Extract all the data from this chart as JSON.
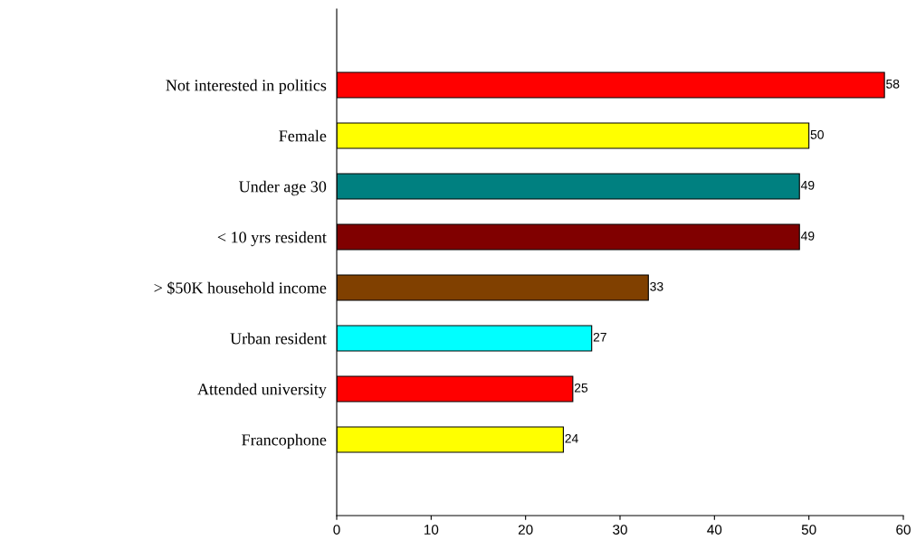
{
  "chart_data": {
    "type": "bar",
    "orientation": "horizontal",
    "categories": [
      "Not interested in politics",
      "Female",
      "Under age 30",
      "< 10 yrs resident",
      "> $50K household income",
      "Urban resident",
      "Attended university",
      "Francophone"
    ],
    "values": [
      58,
      50,
      49,
      49,
      33,
      27,
      25,
      24
    ],
    "colors": [
      "#ff0000",
      "#ffff00",
      "#008080",
      "#800000",
      "#804000",
      "#00ffff",
      "#ff0000",
      "#ffff00"
    ],
    "xlim": [
      0,
      60
    ],
    "xticks": [
      0,
      10,
      20,
      30,
      40,
      50,
      60
    ],
    "data_labels": true,
    "grid": false,
    "legend": false
  }
}
